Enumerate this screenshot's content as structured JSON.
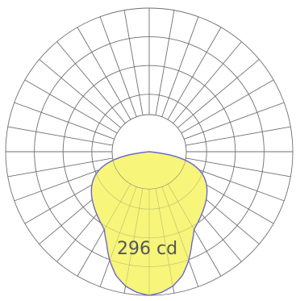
{
  "chart_data": {
    "type": "polar",
    "title": "",
    "peak_label": "296 cd",
    "peak_value": 296,
    "unit": "cd",
    "angle_step_deg": 10,
    "ring_count": 5,
    "rmax": 296,
    "grid": true,
    "series": [
      {
        "fill": "#f7f57a",
        "stroke": "#6a68c8",
        "angles": [
          -30,
          -25,
          -20,
          -15,
          -10,
          -5,
          0,
          5,
          10,
          15,
          20,
          25,
          30
        ],
        "values": [
          185,
          208,
          238,
          264,
          281,
          291,
          296,
          291,
          281,
          264,
          238,
          208,
          185
        ]
      }
    ]
  }
}
